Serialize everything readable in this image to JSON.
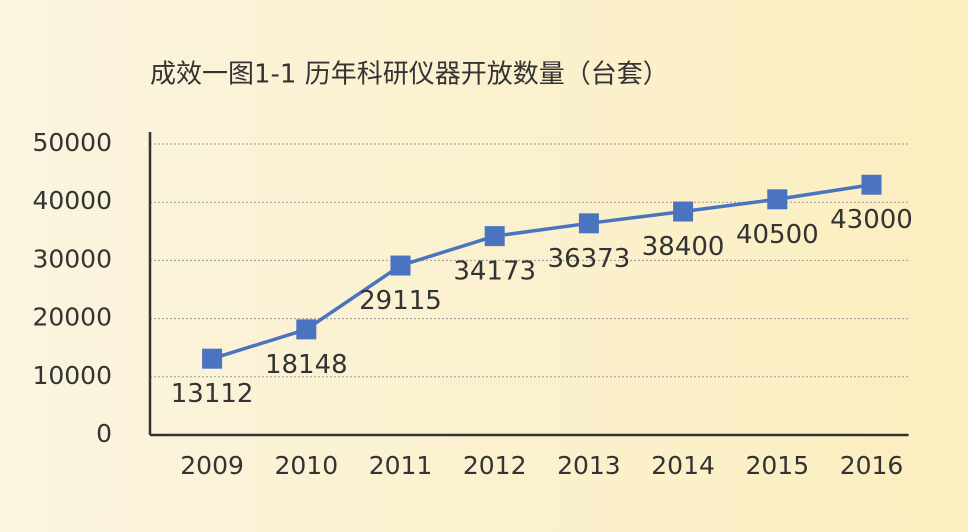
{
  "chart_data": {
    "type": "line",
    "title": "成效一图1-1  历年科研仪器开放数量（台套）",
    "categories": [
      "2009",
      "2010",
      "2011",
      "2012",
      "2013",
      "2014",
      "2015",
      "2016"
    ],
    "values": [
      13112,
      18148,
      29115,
      34173,
      36373,
      38400,
      40500,
      43000
    ],
    "color": "#4a74c0",
    "ylim": [
      0,
      50000
    ],
    "yticks": [
      0,
      10000,
      20000,
      30000,
      40000,
      50000
    ],
    "grid": true
  }
}
